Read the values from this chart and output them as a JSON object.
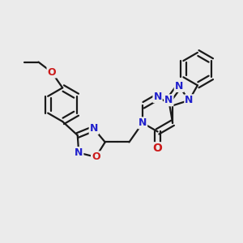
{
  "bg_color": "#ebebeb",
  "bond_color": "#1a1a1a",
  "N_color": "#2020cc",
  "O_color": "#cc1a1a",
  "line_width": 1.6,
  "figsize": [
    3.0,
    3.0
  ],
  "dpi": 100,
  "xlim": [
    0,
    10
  ],
  "ylim": [
    0,
    10
  ]
}
